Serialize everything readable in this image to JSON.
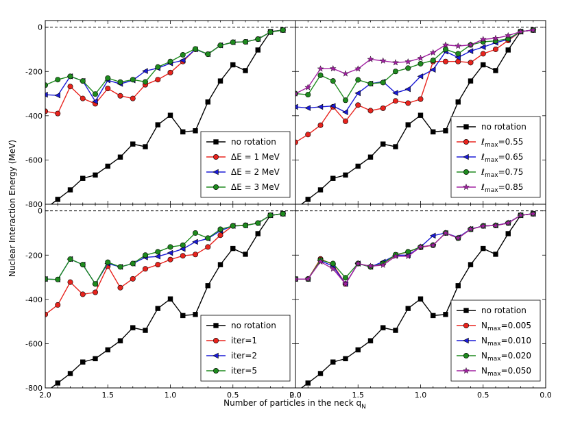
{
  "chart_data": {
    "type": "line",
    "layout": "2x2 grid of line plots sharing axes",
    "ylabel": "Nuclear Interaction Energy (MeV)",
    "xlabel": "Number of particles in the neck q",
    "xlabel_subscript": "N",
    "xlim": [
      2.0,
      0.0
    ],
    "ylim": [
      -800,
      30
    ],
    "x_ticks": [
      "2.0",
      "1.5",
      "1.0",
      "0.5",
      "0.0"
    ],
    "y_ticks": [
      "0",
      "-200",
      "-400",
      "-600",
      "-800"
    ],
    "reference_line": {
      "y": 0,
      "style": "dashed"
    },
    "grid": false,
    "legend_position": "lower-right",
    "panels": [
      {
        "position": "top-left",
        "series": [
          {
            "name": "no rotation",
            "color": "#000000",
            "marker": "square",
            "x": [
              2.0,
              1.9,
              1.8,
              1.7,
              1.6,
              1.5,
              1.4,
              1.3,
              1.2,
              1.1,
              1.0,
              0.9,
              0.8,
              0.7,
              0.6,
              0.5,
              0.4,
              0.3,
              0.2,
              0.1
            ],
            "y": [
              -820,
              -778,
              -735,
              -683,
              -668,
              -628,
              -587,
              -528,
              -540,
              -441,
              -398,
              -473,
              -468,
              -338,
              -243,
              -170,
              -196,
              -103,
              -20,
              -13
            ]
          },
          {
            "name": "ΔE = 1 MeV",
            "color": "#e8231d",
            "marker": "circle",
            "x": [
              2.0,
              1.9,
              1.8,
              1.7,
              1.6,
              1.5,
              1.4,
              1.3,
              1.2,
              1.1,
              1.0,
              0.9,
              0.8,
              0.7,
              0.6,
              0.5,
              0.4,
              0.3,
              0.2,
              0.1
            ],
            "y": [
              -380,
              -390,
              -268,
              -322,
              -346,
              -277,
              -310,
              -322,
              -260,
              -237,
              -205,
              -155,
              -100,
              -122,
              -82,
              -68,
              -66,
              -54,
              -22,
              -13
            ]
          },
          {
            "name": "ΔE = 2 MeV",
            "color": "#1a1ad6",
            "marker": "triangle-left",
            "x": [
              2.0,
              1.9,
              1.8,
              1.7,
              1.6,
              1.5,
              1.4,
              1.3,
              1.2,
              1.1,
              1.0,
              0.9,
              0.8,
              0.7,
              0.6,
              0.5,
              0.4,
              0.3,
              0.2,
              0.1
            ],
            "y": [
              -305,
              -308,
              -222,
              -243,
              -335,
              -240,
              -256,
              -240,
              -198,
              -185,
              -163,
              -150,
              -100,
              -122,
              -82,
              -68,
              -66,
              -54,
              -22,
              -13
            ]
          },
          {
            "name": "ΔE = 3 MeV",
            "color": "#1e8a1e",
            "marker": "circle",
            "x": [
              2.0,
              1.9,
              1.8,
              1.7,
              1.6,
              1.5,
              1.4,
              1.3,
              1.2,
              1.1,
              1.0,
              0.9,
              0.8,
              0.7,
              0.6,
              0.5,
              0.4,
              0.3,
              0.2,
              0.1
            ],
            "y": [
              -262,
              -237,
              -222,
              -243,
              -302,
              -230,
              -248,
              -237,
              -247,
              -180,
              -155,
              -125,
              -98,
              -122,
              -82,
              -68,
              -66,
              -54,
              -22,
              -13
            ]
          }
        ]
      },
      {
        "position": "top-right",
        "series": [
          {
            "name": "no rotation",
            "color": "#000000",
            "marker": "square",
            "x": [
              2.0,
              1.9,
              1.8,
              1.7,
              1.6,
              1.5,
              1.4,
              1.3,
              1.2,
              1.1,
              1.0,
              0.9,
              0.8,
              0.7,
              0.6,
              0.5,
              0.4,
              0.3,
              0.2,
              0.1
            ],
            "y": [
              -820,
              -778,
              -735,
              -683,
              -668,
              -628,
              -587,
              -528,
              -540,
              -441,
              -398,
              -473,
              -468,
              -338,
              -243,
              -170,
              -196,
              -103,
              -20,
              -13
            ]
          },
          {
            "name": "ℓmax=0.55",
            "color": "#e8231d",
            "marker": "circle",
            "x": [
              2.0,
              1.9,
              1.8,
              1.7,
              1.6,
              1.5,
              1.4,
              1.3,
              1.2,
              1.1,
              1.0,
              0.9,
              0.8,
              0.7,
              0.6,
              0.5,
              0.4,
              0.3,
              0.2,
              0.1
            ],
            "y": [
              -520,
              -485,
              -443,
              -360,
              -425,
              -352,
              -377,
              -366,
              -333,
              -343,
              -325,
              -155,
              -155,
              -155,
              -160,
              -120,
              -100,
              -60,
              -20,
              -13
            ]
          },
          {
            "name": "ℓmax=0.65",
            "color": "#1a1ad6",
            "marker": "triangle-left",
            "x": [
              2.0,
              1.9,
              1.8,
              1.7,
              1.6,
              1.5,
              1.4,
              1.3,
              1.2,
              1.1,
              1.0,
              0.9,
              0.8,
              0.7,
              0.6,
              0.5,
              0.4,
              0.3,
              0.2,
              0.1
            ],
            "y": [
              -360,
              -365,
              -360,
              -356,
              -384,
              -298,
              -255,
              -246,
              -297,
              -280,
              -222,
              -192,
              -110,
              -137,
              -108,
              -90,
              -70,
              -55,
              -20,
              -13
            ]
          },
          {
            "name": "ℓmax=0.75",
            "color": "#1e8a1e",
            "marker": "circle",
            "x": [
              2.0,
              1.9,
              1.8,
              1.7,
              1.6,
              1.5,
              1.4,
              1.3,
              1.2,
              1.1,
              1.0,
              0.9,
              0.8,
              0.7,
              0.6,
              0.5,
              0.4,
              0.3,
              0.2,
              0.1
            ],
            "y": [
              -300,
              -305,
              -217,
              -243,
              -330,
              -238,
              -255,
              -250,
              -200,
              -185,
              -165,
              -150,
              -100,
              -120,
              -80,
              -66,
              -62,
              -52,
              -20,
              -13
            ]
          },
          {
            "name": "ℓmax=0.85",
            "color": "#a020a0",
            "marker": "star",
            "x": [
              2.0,
              1.9,
              1.8,
              1.7,
              1.6,
              1.5,
              1.4,
              1.3,
              1.2,
              1.1,
              1.0,
              0.9,
              0.8,
              0.7,
              0.6,
              0.5,
              0.4,
              0.3,
              0.2,
              0.1
            ],
            "y": [
              -300,
              -272,
              -188,
              -187,
              -210,
              -188,
              -145,
              -152,
              -160,
              -156,
              -140,
              -115,
              -80,
              -85,
              -80,
              -55,
              -50,
              -38,
              -20,
              -13
            ]
          }
        ]
      },
      {
        "position": "bottom-left",
        "series": [
          {
            "name": "no rotation",
            "color": "#000000",
            "marker": "square",
            "x": [
              2.0,
              1.9,
              1.8,
              1.7,
              1.6,
              1.5,
              1.4,
              1.3,
              1.2,
              1.1,
              1.0,
              0.9,
              0.8,
              0.7,
              0.6,
              0.5,
              0.4,
              0.3,
              0.2,
              0.1
            ],
            "y": [
              -820,
              -778,
              -735,
              -683,
              -668,
              -628,
              -587,
              -528,
              -540,
              -441,
              -398,
              -473,
              -468,
              -338,
              -243,
              -170,
              -196,
              -103,
              -20,
              -13
            ]
          },
          {
            "name": "iter=1",
            "color": "#e8231d",
            "marker": "circle",
            "x": [
              2.0,
              1.9,
              1.8,
              1.7,
              1.6,
              1.5,
              1.4,
              1.3,
              1.2,
              1.1,
              1.0,
              0.9,
              0.8,
              0.7,
              0.6,
              0.5,
              0.4,
              0.3,
              0.2,
              0.1
            ],
            "y": [
              -468,
              -425,
              -322,
              -377,
              -368,
              -250,
              -347,
              -307,
              -262,
              -243,
              -220,
              -203,
              -197,
              -163,
              -110,
              -67,
              -65,
              -55,
              -20,
              -13
            ]
          },
          {
            "name": "iter=2",
            "color": "#1a1ad6",
            "marker": "triangle-left",
            "x": [
              2.0,
              1.9,
              1.8,
              1.7,
              1.6,
              1.5,
              1.4,
              1.3,
              1.2,
              1.1,
              1.0,
              0.9,
              0.8,
              0.7,
              0.6,
              0.5,
              0.4,
              0.3,
              0.2,
              0.1
            ],
            "y": [
              -308,
              -310,
              -218,
              -243,
              -330,
              -238,
              -253,
              -238,
              -210,
              -206,
              -190,
              -172,
              -140,
              -125,
              -90,
              -68,
              -66,
              -55,
              -20,
              -13
            ]
          },
          {
            "name": "iter=5",
            "color": "#1e8a1e",
            "marker": "circle",
            "x": [
              2.0,
              1.9,
              1.8,
              1.7,
              1.6,
              1.5,
              1.4,
              1.3,
              1.2,
              1.1,
              1.0,
              0.9,
              0.8,
              0.7,
              0.6,
              0.5,
              0.4,
              0.3,
              0.2,
              0.1
            ],
            "y": [
              -308,
              -310,
              -218,
              -243,
              -330,
              -232,
              -253,
              -238,
              -200,
              -185,
              -163,
              -155,
              -100,
              -123,
              -83,
              -68,
              -66,
              -55,
              -20,
              -13
            ]
          }
        ]
      },
      {
        "position": "bottom-right",
        "series": [
          {
            "name": "no rotation",
            "color": "#000000",
            "marker": "square",
            "x": [
              2.0,
              1.9,
              1.8,
              1.7,
              1.6,
              1.5,
              1.4,
              1.3,
              1.2,
              1.1,
              1.0,
              0.9,
              0.8,
              0.7,
              0.6,
              0.5,
              0.4,
              0.3,
              0.2,
              0.1
            ],
            "y": [
              -820,
              -778,
              -735,
              -683,
              -668,
              -628,
              -587,
              -528,
              -540,
              -441,
              -398,
              -473,
              -468,
              -338,
              -243,
              -170,
              -196,
              -103,
              -20,
              -13
            ]
          },
          {
            "name": "Nmax=0.005",
            "color": "#e8231d",
            "marker": "circle",
            "x": [
              2.0,
              1.9,
              1.8,
              1.7,
              1.6,
              1.5,
              1.4,
              1.3,
              1.2,
              1.1,
              1.0,
              0.9,
              0.8,
              0.7,
              0.6,
              0.5,
              0.4,
              0.3,
              0.2,
              0.1
            ],
            "y": [
              -308,
              -308,
              -217,
              -243,
              -330,
              -238,
              -253,
              -238,
              -200,
              -185,
              -165,
              -155,
              -100,
              -123,
              -83,
              -68,
              -66,
              -55,
              -20,
              -13
            ]
          },
          {
            "name": "Nmax=0.010",
            "color": "#1a1ad6",
            "marker": "triangle-left",
            "x": [
              2.0,
              1.9,
              1.8,
              1.7,
              1.6,
              1.5,
              1.4,
              1.3,
              1.2,
              1.1,
              1.0,
              0.9,
              0.8,
              0.7,
              0.6,
              0.5,
              0.4,
              0.3,
              0.2,
              0.1
            ],
            "y": [
              -308,
              -308,
              -225,
              -250,
              -330,
              -238,
              -253,
              -230,
              -200,
              -200,
              -163,
              -112,
              -100,
              -120,
              -82,
              -68,
              -66,
              -54,
              -20,
              -13
            ]
          },
          {
            "name": "Nmax=0.020",
            "color": "#1e8a1e",
            "marker": "circle",
            "x": [
              2.0,
              1.9,
              1.8,
              1.7,
              1.6,
              1.5,
              1.4,
              1.3,
              1.2,
              1.1,
              1.0,
              0.9,
              0.8,
              0.7,
              0.6,
              0.5,
              0.4,
              0.3,
              0.2,
              0.1
            ],
            "y": [
              -308,
              -308,
              -222,
              -238,
              -302,
              -238,
              -253,
              -238,
              -198,
              -185,
              -163,
              -155,
              -100,
              -123,
              -83,
              -68,
              -66,
              -55,
              -20,
              -13
            ]
          },
          {
            "name": "Nmax=0.050",
            "color": "#a020a0",
            "marker": "star",
            "x": [
              2.0,
              1.9,
              1.8,
              1.7,
              1.6,
              1.5,
              1.4,
              1.3,
              1.2,
              1.1,
              1.0,
              0.9,
              0.8,
              0.7,
              0.6,
              0.5,
              0.4,
              0.3,
              0.2,
              0.1
            ],
            "y": [
              -308,
              -308,
              -230,
              -262,
              -330,
              -238,
              -250,
              -245,
              -205,
              -205,
              -163,
              -155,
              -100,
              -123,
              -83,
              -68,
              -66,
              -55,
              -20,
              -13
            ]
          }
        ]
      }
    ]
  }
}
